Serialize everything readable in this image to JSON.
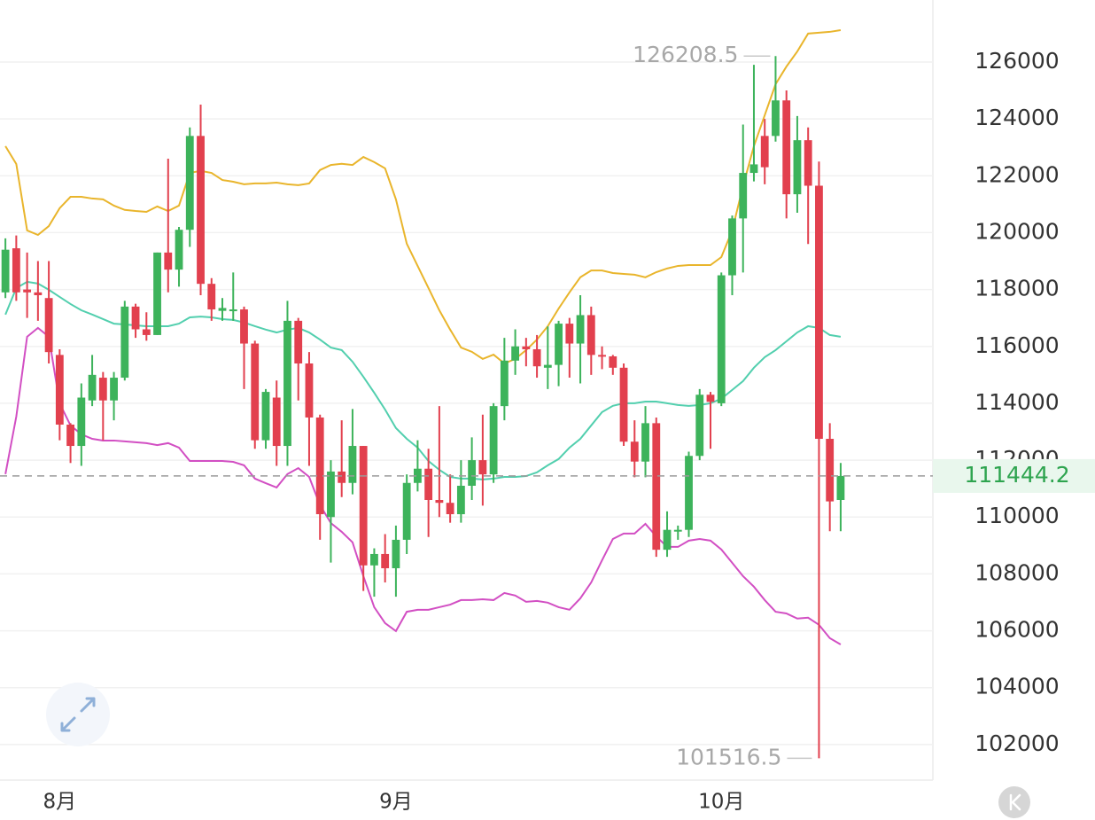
{
  "chart_data": {
    "type": "candlestick",
    "categories": [
      null,
      null,
      null,
      null,
      null,
      "8月",
      null,
      null,
      null,
      null,
      null,
      null,
      null,
      null,
      null,
      null,
      null,
      null,
      null,
      null,
      null,
      null,
      null,
      null,
      null,
      null,
      null,
      null,
      null,
      null,
      null,
      null,
      null,
      null,
      null,
      null,
      "9月",
      null,
      null,
      null,
      null,
      null,
      null,
      null,
      null,
      null,
      null,
      null,
      null,
      null,
      null,
      null,
      null,
      null,
      null,
      null,
      null,
      null,
      null,
      null,
      null,
      null,
      null,
      null,
      null,
      null,
      "10月",
      null,
      null,
      null,
      null,
      null,
      null,
      null,
      null,
      null,
      null,
      null
    ],
    "open": [
      117900,
      119450,
      118000,
      117900,
      117700,
      115700,
      113250,
      112500,
      114100,
      114900,
      114100,
      114900,
      117400,
      116600,
      116400,
      119300,
      118700,
      120100,
      123400,
      118200,
      117250,
      117300,
      117300,
      116100,
      112700,
      114200,
      112500,
      116900,
      115400,
      113500,
      110000,
      111600,
      111200,
      112500,
      108300,
      108700,
      108200,
      109200,
      111200,
      111700,
      110600,
      110500,
      110100,
      111100,
      112000,
      111500,
      113900,
      115500,
      116000,
      115900,
      115250,
      115350,
      116800,
      116100,
      117100,
      115700,
      115650,
      115250,
      112650,
      111950,
      113300,
      108850,
      109550,
      109550,
      112150,
      114300,
      114000,
      118500,
      120500,
      122100,
      123400,
      123400,
      124650,
      121350,
      123250,
      121650,
      112750,
      110600
    ],
    "high": [
      119800,
      119900,
      119300,
      119000,
      119000,
      115900,
      113300,
      114700,
      115700,
      115100,
      115100,
      117600,
      117500,
      117200,
      119300,
      122600,
      120200,
      123700,
      124500,
      118400,
      117700,
      118600,
      117400,
      116200,
      114500,
      114800,
      117600,
      117000,
      115800,
      113600,
      112000,
      113400,
      113800,
      112500,
      108900,
      109400,
      109700,
      111500,
      112700,
      112400,
      113900,
      111500,
      112000,
      112800,
      113600,
      114000,
      116300,
      116600,
      116300,
      116400,
      116700,
      116900,
      117000,
      117800,
      117400,
      116000,
      115700,
      115400,
      113400,
      113900,
      113500,
      110200,
      109700,
      112300,
      114500,
      114400,
      118600,
      120600,
      123800,
      125900,
      124000,
      126208.5,
      125000,
      124100,
      123700,
      122500,
      113300,
      111900
    ],
    "low": [
      117700,
      117600,
      117000,
      116900,
      115400,
      112700,
      111900,
      111800,
      113900,
      112700,
      113400,
      114800,
      116300,
      116200,
      116400,
      117900,
      118100,
      119500,
      117800,
      116900,
      116900,
      116900,
      114500,
      112400,
      112400,
      111800,
      111800,
      114100,
      111800,
      109200,
      108400,
      110700,
      110800,
      107400,
      107200,
      107700,
      107200,
      108700,
      110900,
      109300,
      110000,
      109800,
      109800,
      110600,
      110400,
      111200,
      113400,
      115000,
      115300,
      114900,
      114500,
      114600,
      114900,
      114700,
      115000,
      115200,
      115000,
      112500,
      111400,
      111400,
      108600,
      108600,
      109200,
      109300,
      112000,
      112400,
      113900,
      117800,
      118600,
      121800,
      121700,
      123200,
      120500,
      120700,
      119600,
      101516.5,
      109500,
      109500
    ],
    "close": [
      119400,
      117900,
      117900,
      117800,
      115800,
      113250,
      112500,
      114200,
      115000,
      114100,
      114900,
      117400,
      116600,
      116400,
      119300,
      118700,
      120100,
      123400,
      118200,
      117300,
      117350,
      117300,
      116100,
      112700,
      114400,
      112500,
      116900,
      115400,
      113500,
      110100,
      111600,
      111200,
      112500,
      108300,
      108700,
      108200,
      109200,
      111200,
      111700,
      110600,
      110500,
      110100,
      111100,
      112000,
      111500,
      113900,
      115500,
      116000,
      115900,
      115300,
      115350,
      116800,
      116100,
      117100,
      115700,
      115650,
      115250,
      112650,
      111950,
      113300,
      108850,
      109550,
      109550,
      112150,
      114300,
      114050,
      118500,
      120500,
      122100,
      122400,
      122300,
      124650,
      121350,
      123250,
      121650,
      112750,
      110550,
      111444.2
    ],
    "upper": [
      123040,
      122415,
      120080,
      119920,
      120230,
      120860,
      121260,
      121260,
      121200,
      121170,
      120950,
      120800,
      120760,
      120730,
      120920,
      120760,
      120950,
      122100,
      122170,
      122100,
      121850,
      121790,
      121700,
      121730,
      121730,
      121760,
      121700,
      121670,
      121730,
      122200,
      122380,
      122420,
      122380,
      122660,
      122480,
      122260,
      121170,
      119610,
      118830,
      118050,
      117270,
      116590,
      115960,
      115810,
      115560,
      115710,
      115400,
      115560,
      115870,
      116240,
      116710,
      117330,
      117900,
      118430,
      118670,
      118670,
      118580,
      118550,
      118520,
      118430,
      118610,
      118740,
      118830,
      118860,
      118860,
      118860,
      119140,
      120080,
      121640,
      123040,
      124130,
      125220,
      125840,
      126370,
      127000,
      127030,
      127060,
      127120
    ],
    "middle": [
      117120,
      118050,
      118270,
      118210,
      117990,
      117740,
      117490,
      117270,
      117120,
      116960,
      116800,
      116770,
      116740,
      116710,
      116710,
      116710,
      116800,
      117020,
      117050,
      117020,
      116960,
      116930,
      116840,
      116710,
      116590,
      116490,
      116590,
      116650,
      116490,
      116240,
      115960,
      115870,
      115460,
      114930,
      114370,
      113780,
      113130,
      112750,
      112440,
      111970,
      111660,
      111410,
      111350,
      111350,
      111320,
      111350,
      111410,
      111410,
      111440,
      111570,
      111820,
      112040,
      112440,
      112750,
      113220,
      113690,
      113910,
      114000,
      114000,
      114060,
      114060,
      114000,
      113940,
      113910,
      113940,
      114000,
      114160,
      114470,
      114780,
      115250,
      115620,
      115870,
      116180,
      116490,
      116710,
      116650,
      116400,
      116340
    ],
    "lower": [
      111510,
      113530,
      116340,
      116650,
      116340,
      114000,
      113220,
      112910,
      112750,
      112690,
      112690,
      112660,
      112630,
      112600,
      112530,
      112600,
      112440,
      111970,
      111970,
      111970,
      111970,
      111940,
      111820,
      111350,
      111190,
      111040,
      111510,
      111720,
      111410,
      110420,
      109790,
      109480,
      109110,
      107920,
      106830,
      106270,
      105990,
      106670,
      106740,
      106740,
      106830,
      106920,
      107080,
      107080,
      107110,
      107080,
      107330,
      107240,
      107020,
      107050,
      106990,
      106830,
      106740,
      107140,
      107700,
      108480,
      109230,
      109420,
      109420,
      109760,
      109320,
      108950,
      108950,
      109170,
      109230,
      109170,
      108860,
      108390,
      107920,
      107550,
      107080,
      106670,
      106610,
      106430,
      106460,
      106210,
      105740,
      105520
    ],
    "up_color": "#3db35b",
    "down_color": "#e2404e",
    "band_colors": {
      "upper": "#e9b52c",
      "middle": "#52cfae",
      "lower": "#d24fc3"
    },
    "ylim": [
      100750,
      128180
    ],
    "yticks": [
      102000,
      104000,
      106000,
      108000,
      110000,
      112000,
      114000,
      116000,
      118000,
      120000,
      122000,
      124000,
      126000
    ],
    "grid": true
  }
}
